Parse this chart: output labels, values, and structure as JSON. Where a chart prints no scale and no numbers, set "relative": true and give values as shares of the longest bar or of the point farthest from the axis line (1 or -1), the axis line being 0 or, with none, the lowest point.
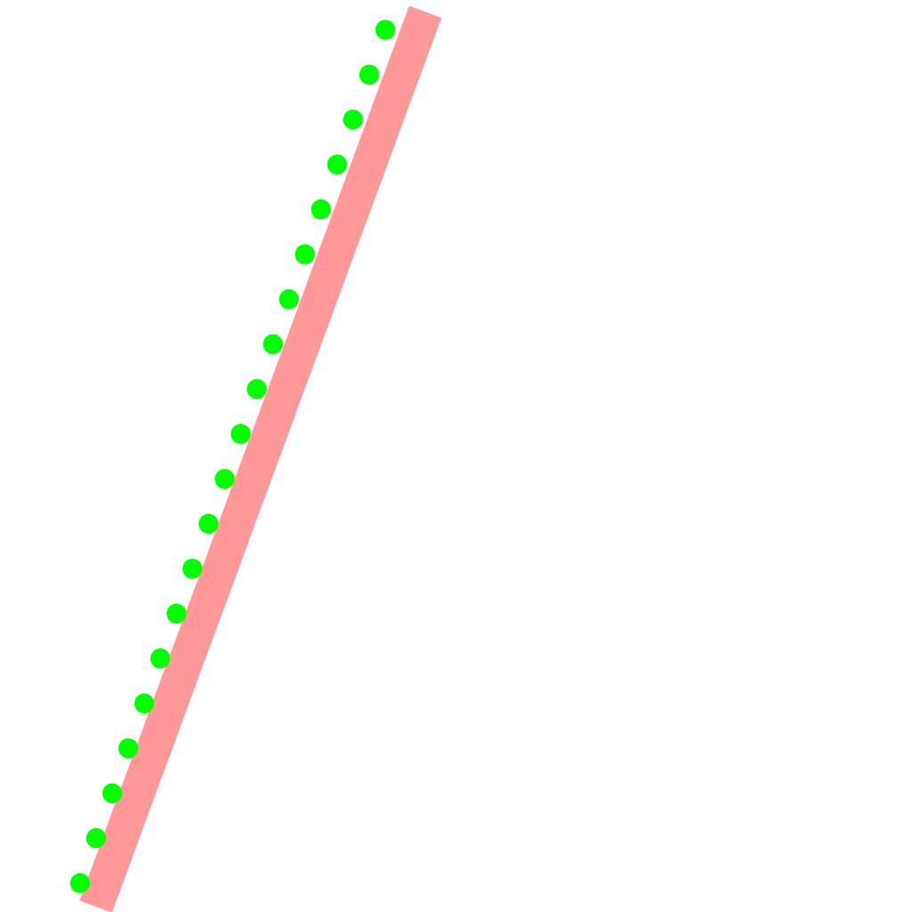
{
  "chart_data": {
    "type": "line",
    "relative": true,
    "categories": [
      null,
      null,
      null,
      null,
      null,
      null,
      null,
      null,
      null,
      null,
      null,
      null,
      null,
      null,
      null,
      null,
      null,
      null,
      null,
      null,
      null,
      null,
      null
    ],
    "series": [
      {
        "color": "#ff9999",
        "line_style": "solid",
        "values": [
          null,
          0,
          0.047,
          0.095,
          0.142,
          0.189,
          0.237,
          0.284,
          0.331,
          0.378,
          0.426,
          0.473,
          0.52,
          0.568,
          0.615,
          0.662,
          0.71,
          0.757,
          0.804,
          0.851,
          0.899,
          0.946,
          0.993
        ]
      },
      {
        "color": "#00ff00",
        "line_style": "dotted",
        "values": [
          0.026,
          0.075,
          0.123,
          0.172,
          0.221,
          0.27,
          0.318,
          0.367,
          0.416,
          0.464,
          0.513,
          0.562,
          0.61,
          0.659,
          0.708,
          0.757,
          0.805,
          0.854,
          0.903,
          0.951,
          1.0,
          null,
          null
        ]
      }
    ]
  }
}
